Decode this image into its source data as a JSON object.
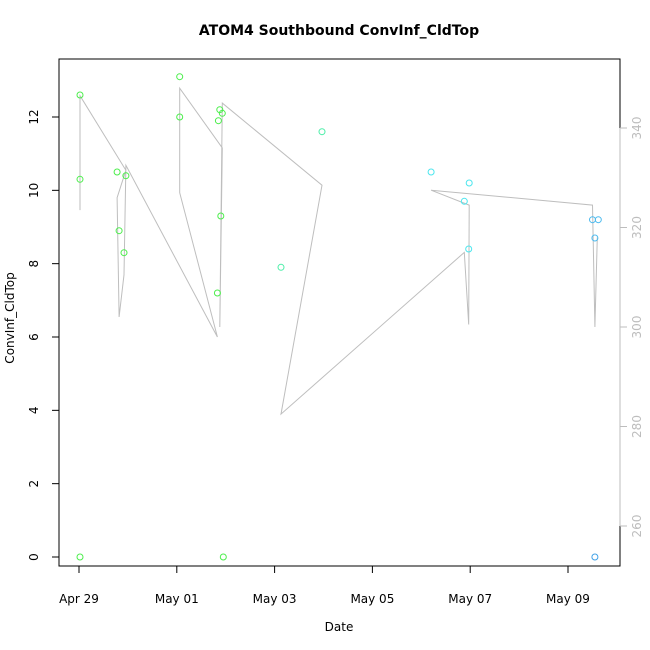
{
  "chart_data": {
    "type": "scatter",
    "title": "ATOM4 Southbound ConvInf_CldTop",
    "xlabel": "Date",
    "ylabel": "ConvInf_CldTop",
    "xlim": [
      -0.3,
      10.5
    ],
    "ylim": [
      -0.5,
      13.5
    ],
    "right_ylim": [
      251.5,
      353
    ],
    "x_ticks": [
      {
        "label": "Apr 29",
        "value": 0
      },
      {
        "label": "May 01",
        "value": 2
      },
      {
        "label": "May 03",
        "value": 4
      },
      {
        "label": "May 05",
        "value": 6
      },
      {
        "label": "May 07",
        "value": 8
      },
      {
        "label": "May 09",
        "value": 10
      }
    ],
    "y_ticks": [
      0,
      2,
      4,
      6,
      8,
      10,
      12
    ],
    "right_y_ticks": [
      260,
      280,
      300,
      320,
      340
    ],
    "grid": false,
    "legend": "none",
    "colors": {
      "line": "#bebebe",
      "axis": "#000000",
      "right_axis": "#bdbdbd"
    },
    "points": [
      {
        "x": 0.02,
        "y": 12.6,
        "color": "#4cee4c"
      },
      {
        "x": 0.02,
        "y": 10.3,
        "color": "#4cee4c"
      },
      {
        "x": 0.02,
        "y": 0.0,
        "color": "#4cee4c"
      },
      {
        "x": 0.78,
        "y": 10.5,
        "color": "#4cee4c"
      },
      {
        "x": 0.82,
        "y": 8.9,
        "color": "#4cee4c"
      },
      {
        "x": 0.92,
        "y": 8.3,
        "color": "#4cee4c"
      },
      {
        "x": 0.96,
        "y": 10.4,
        "color": "#4cee4c"
      },
      {
        "x": 2.06,
        "y": 13.1,
        "color": "#4cee4c"
      },
      {
        "x": 2.06,
        "y": 12.0,
        "color": "#4cee4c"
      },
      {
        "x": 2.85,
        "y": 11.9,
        "color": "#4cee4c"
      },
      {
        "x": 2.88,
        "y": 12.2,
        "color": "#4cee4c"
      },
      {
        "x": 2.93,
        "y": 12.1,
        "color": "#4cee4c"
      },
      {
        "x": 2.9,
        "y": 9.3,
        "color": "#4cee4c"
      },
      {
        "x": 2.83,
        "y": 7.2,
        "color": "#4cee4c"
      },
      {
        "x": 2.95,
        "y": 0.0,
        "color": "#4cee4c"
      },
      {
        "x": 4.13,
        "y": 7.9,
        "color": "#4ceea8"
      },
      {
        "x": 4.97,
        "y": 11.6,
        "color": "#4ceea8"
      },
      {
        "x": 7.2,
        "y": 10.5,
        "color": "#4ce6ee"
      },
      {
        "x": 7.88,
        "y": 9.7,
        "color": "#4ce6ee"
      },
      {
        "x": 7.98,
        "y": 10.2,
        "color": "#4ce6ee"
      },
      {
        "x": 7.97,
        "y": 8.4,
        "color": "#4ce6ee"
      },
      {
        "x": 10.5,
        "y": 9.2,
        "color": "#4cbaee"
      },
      {
        "x": 10.55,
        "y": 8.7,
        "color": "#4cbaee"
      },
      {
        "x": 10.62,
        "y": 9.2,
        "color": "#4cbaee"
      },
      {
        "x": 10.55,
        "y": 0.0,
        "color": "#3fa0e6"
      }
    ],
    "line_series": {
      "axis": "right",
      "points": [
        {
          "x": 0.02,
          "y": 323.5
        },
        {
          "x": 0.02,
          "y": 346.5
        },
        {
          "x": 0.96,
          "y": 331.5
        },
        {
          "x": 0.78,
          "y": 326.0
        },
        {
          "x": 0.82,
          "y": 302.0
        },
        {
          "x": 0.92,
          "y": 310.5
        },
        {
          "x": 0.96,
          "y": 332.5
        },
        {
          "x": 2.83,
          "y": 298.0
        },
        {
          "x": 2.06,
          "y": 327.0
        },
        {
          "x": 2.06,
          "y": 348.0
        },
        {
          "x": 2.93,
          "y": 336.0
        },
        {
          "x": 2.88,
          "y": 300.0
        },
        {
          "x": 2.93,
          "y": 345.0
        },
        {
          "x": 4.97,
          "y": 328.5
        },
        {
          "x": 4.13,
          "y": 282.5
        },
        {
          "x": 7.88,
          "y": 315.0
        },
        {
          "x": 7.97,
          "y": 300.5
        },
        {
          "x": 7.98,
          "y": 324.5
        },
        {
          "x": 7.2,
          "y": 327.5
        },
        {
          "x": 10.5,
          "y": 324.5
        },
        {
          "x": 10.55,
          "y": 300.0
        },
        {
          "x": 10.6,
          "y": 318.0
        }
      ]
    }
  }
}
